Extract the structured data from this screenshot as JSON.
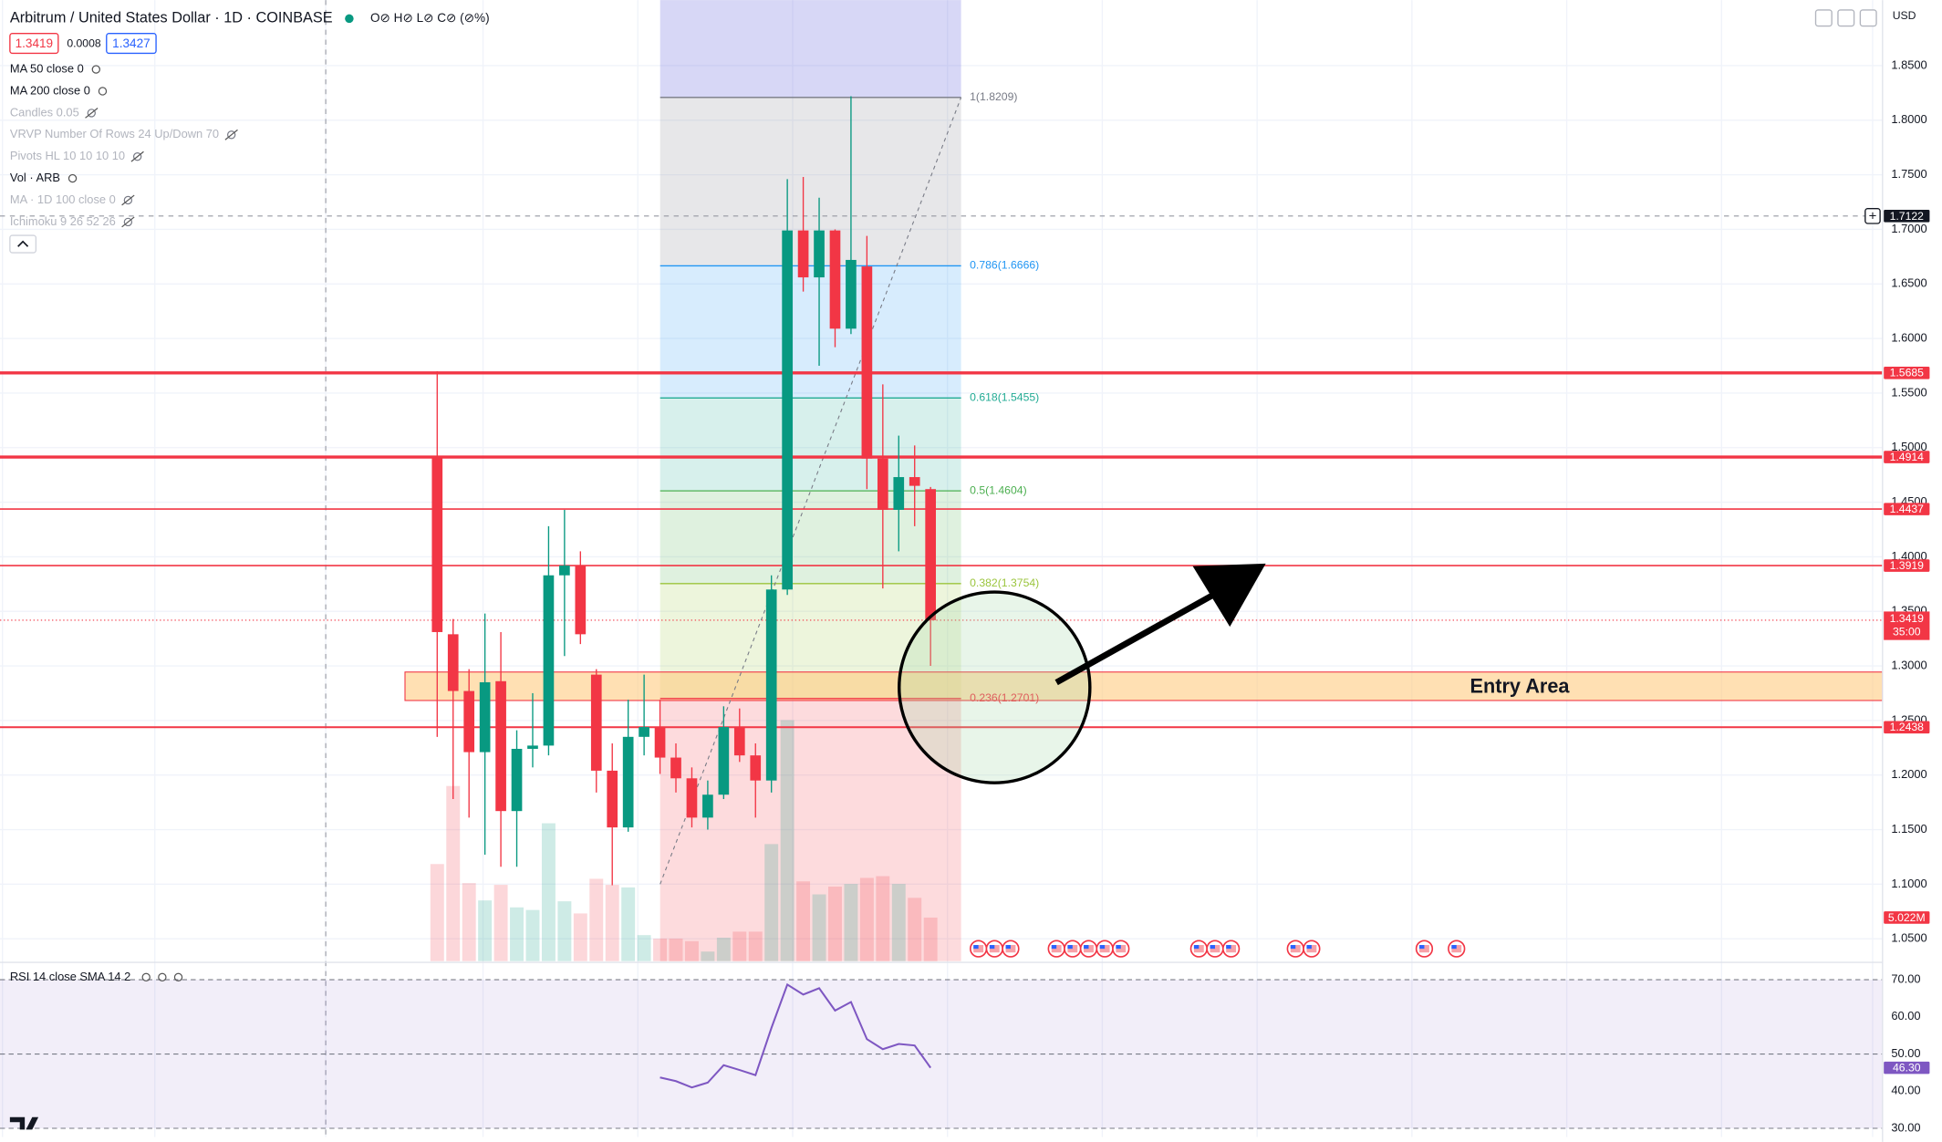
{
  "header": {
    "title": "Arbitrum / United States Dollar · 1D · COINBASE",
    "ohlc": "O⊘ H⊘ L⊘ C⊘ (⊘%)",
    "bid": 1.3419,
    "spread": 0.0008,
    "ask": 1.3427,
    "currency": "USD"
  },
  "indicators": [
    {
      "label": "MA 50 close 0",
      "hidden": false
    },
    {
      "label": "MA 200 close 0",
      "hidden": false
    },
    {
      "label": "Candles 0.05",
      "hidden": true
    },
    {
      "label": "VRVP Number Of Rows 24 Up/Down 70",
      "hidden": true
    },
    {
      "label": "Pivots HL 10 10 10 10",
      "hidden": true
    },
    {
      "label": "Vol · ARB",
      "hidden": false
    },
    {
      "label": "MA · 1D 100 close 0",
      "hidden": true
    },
    {
      "label": "Ichimoku 9 26 52 26",
      "hidden": true
    }
  ],
  "chart_data": {
    "type": "candlestick",
    "up_color": "#089981",
    "down_color": "#f23645",
    "open": [
      1.4914,
      1.329,
      1.277,
      1.221,
      1.286,
      1.167,
      1.224,
      1.227,
      1.383,
      1.392,
      1.292,
      1.204,
      1.152,
      1.235,
      1.244,
      1.216,
      1.197,
      1.161,
      1.182,
      1.244,
      1.218,
      1.195,
      1.37,
      1.699,
      1.656,
      1.699,
      1.609,
      1.666,
      1.49,
      1.443,
      1.473,
      1.462
    ],
    "high": [
      1.57,
      1.343,
      1.297,
      1.348,
      1.331,
      1.241,
      1.275,
      1.428,
      1.443,
      1.405,
      1.297,
      1.229,
      1.269,
      1.292,
      1.269,
      1.229,
      1.207,
      1.195,
      1.263,
      1.261,
      1.229,
      1.383,
      1.746,
      1.748,
      1.729,
      1.7,
      1.822,
      1.694,
      1.558,
      1.511,
      1.502,
      1.464
    ],
    "low": [
      1.235,
      1.178,
      1.161,
      1.127,
      1.116,
      1.116,
      1.207,
      1.218,
      1.309,
      1.32,
      1.184,
      1.099,
      1.148,
      1.218,
      1.201,
      1.184,
      1.152,
      1.15,
      1.178,
      1.212,
      1.161,
      1.184,
      1.365,
      1.643,
      1.575,
      1.592,
      1.604,
      1.462,
      1.371,
      1.405,
      1.428,
      1.3
    ],
    "close": [
      1.331,
      1.277,
      1.221,
      1.285,
      1.167,
      1.224,
      1.227,
      1.383,
      1.392,
      1.329,
      1.204,
      1.152,
      1.235,
      1.244,
      1.216,
      1.197,
      1.161,
      1.182,
      1.244,
      1.218,
      1.195,
      1.37,
      1.699,
      1.656,
      1.699,
      1.609,
      1.672,
      1.49,
      1.443,
      1.473,
      1.465,
      1.3419
    ],
    "volume": {
      "values": [
        11.2,
        20.2,
        9.0,
        7.0,
        8.8,
        6.2,
        5.9,
        15.9,
        6.9,
        5.5,
        9.5,
        8.8,
        8.5,
        3.0,
        2.6,
        2.6,
        2.3,
        1.1,
        2.7,
        3.4,
        3.4,
        13.5,
        27.8,
        9.2,
        7.7,
        8.6,
        8.9,
        9.6,
        9.8,
        8.9,
        7.3,
        5.022
      ],
      "value_labels": [
        null,
        null,
        null,
        null,
        null,
        null,
        null,
        null,
        null,
        null,
        null,
        null,
        null,
        null,
        null,
        null,
        null,
        null,
        null,
        null,
        null,
        null,
        null,
        null,
        null,
        null,
        null,
        null,
        null,
        null,
        null,
        "5.022M"
      ]
    },
    "ylim": [
      1.0295,
      1.9101
    ],
    "yticks": [
      {
        "value": 1.85,
        "label": "1.8500"
      },
      {
        "value": 1.8,
        "label": "1.8000"
      },
      {
        "value": 1.75,
        "label": "1.7500"
      },
      {
        "value": 1.7,
        "label": "1.7000"
      },
      {
        "value": 1.65,
        "label": "1.6500"
      },
      {
        "value": 1.6,
        "label": "1.6000"
      },
      {
        "value": 1.55,
        "label": "1.5500"
      },
      {
        "value": 1.5,
        "label": "1.5000"
      },
      {
        "value": 1.45,
        "label": "1.4500"
      },
      {
        "value": 1.4,
        "label": "1.4000"
      },
      {
        "value": 1.35,
        "label": "1.3500"
      },
      {
        "value": 1.3,
        "label": "1.3000"
      },
      {
        "value": 1.25,
        "label": "1.2500"
      },
      {
        "value": 1.2,
        "label": "1.2000"
      },
      {
        "value": 1.15,
        "label": "1.1500"
      },
      {
        "value": 1.1,
        "label": "1.1000"
      },
      {
        "value": 1.05,
        "label": "1.0500"
      }
    ],
    "levels": [
      {
        "value": 1.5685,
        "width": 2.5
      },
      {
        "value": 1.4914,
        "width": 2.5
      },
      {
        "value": 1.4437,
        "width": 1.2
      },
      {
        "value": 1.3919,
        "width": 1.2
      },
      {
        "value": 1.2438,
        "width": 1.5
      }
    ],
    "crosshair": 1.7122,
    "last_price": {
      "value": 1.3419,
      "countdown": "35:00"
    },
    "fib": {
      "base_price": 1.1,
      "levels": [
        {
          "price": 1.8209,
          "label": "1(1.8209)",
          "color": "#787b86"
        },
        {
          "price": 1.6666,
          "label": "0.786(1.6666)",
          "color": "#2196f3"
        },
        {
          "price": 1.5455,
          "label": "0.618(1.5455)",
          "color": "#22ab94"
        },
        {
          "price": 1.4604,
          "label": "0.5(1.4604)",
          "color": "#4caf50"
        },
        {
          "price": 1.3754,
          "label": "0.382(1.3754)",
          "color": "#9bc53d"
        },
        {
          "price": 1.2701,
          "label": "0.236(1.2701)",
          "color": "#f23645"
        }
      ]
    },
    "entry_area": {
      "label": "Entry Area",
      "top": 1.2944,
      "bottom": 1.2683
    }
  },
  "rsi": {
    "type": "line",
    "title": "RSI 14 close SMA 14 2",
    "color": "#7e57c2",
    "values": [
      null,
      null,
      null,
      null,
      null,
      null,
      null,
      null,
      null,
      null,
      null,
      null,
      null,
      null,
      43.7,
      42.7,
      41.0,
      42.3,
      47.0,
      45.7,
      44.3,
      57.0,
      68.7,
      66.0,
      67.7,
      61.7,
      64.0,
      54.0,
      51.3,
      52.7,
      52.3,
      46.3
    ],
    "last_label": "46.30",
    "ylim": [
      27.67,
      74.33
    ],
    "yticks": [
      {
        "value": 70,
        "label": "70.00"
      },
      {
        "value": 60,
        "label": "60.00"
      },
      {
        "value": 50,
        "label": "50.00"
      },
      {
        "value": 40,
        "label": "40.00"
      },
      {
        "value": 30,
        "label": "30.00"
      }
    ]
  }
}
